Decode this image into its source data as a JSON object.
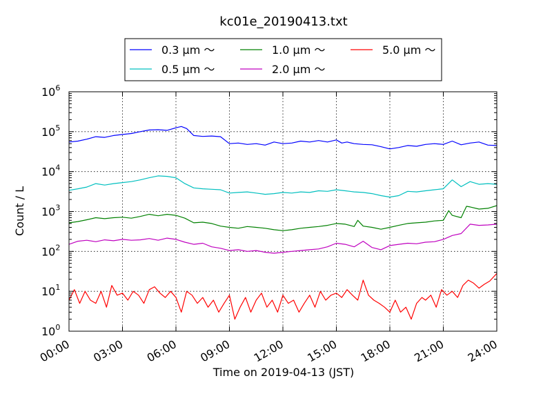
{
  "chart_data": {
    "type": "line",
    "title": "kc01e_20190413.txt",
    "xlabel": "Time on 2019-04-13 (JST)",
    "ylabel": "Count / L",
    "xlim": [
      0,
      24
    ],
    "x_unit": "hours",
    "ylim": [
      1,
      1000000
    ],
    "yscale": "log",
    "grid": true,
    "legend_position": "top",
    "x_ticks": [
      0,
      3,
      6,
      9,
      12,
      15,
      18,
      21,
      24
    ],
    "x_tick_labels": [
      "00:00",
      "03:00",
      "06:00",
      "09:00",
      "12:00",
      "15:00",
      "18:00",
      "21:00",
      "24:00"
    ],
    "y_ticks": [
      1,
      10,
      100,
      1000,
      10000,
      100000,
      1000000
    ],
    "y_tick_labels": [
      {
        "base": "10",
        "exp": "0"
      },
      {
        "base": "10",
        "exp": "1"
      },
      {
        "base": "10",
        "exp": "2"
      },
      {
        "base": "10",
        "exp": "3"
      },
      {
        "base": "10",
        "exp": "4"
      },
      {
        "base": "10",
        "exp": "5"
      },
      {
        "base": "10",
        "exp": "6"
      }
    ],
    "series": [
      {
        "name": "0.3 μm ～",
        "color": "#0000ff",
        "points": [
          [
            0,
            55000
          ],
          [
            0.5,
            58000
          ],
          [
            1,
            65000
          ],
          [
            1.5,
            75000
          ],
          [
            2,
            72000
          ],
          [
            2.5,
            80000
          ],
          [
            3,
            85000
          ],
          [
            3.5,
            90000
          ],
          [
            4,
            100000
          ],
          [
            4.5,
            110000
          ],
          [
            5,
            112000
          ],
          [
            5.5,
            108000
          ],
          [
            6,
            125000
          ],
          [
            6.3,
            135000
          ],
          [
            6.6,
            120000
          ],
          [
            7,
            80000
          ],
          [
            7.5,
            76000
          ],
          [
            8,
            78000
          ],
          [
            8.5,
            75000
          ],
          [
            9,
            50000
          ],
          [
            9.5,
            52000
          ],
          [
            10,
            48000
          ],
          [
            10.5,
            50000
          ],
          [
            11,
            46000
          ],
          [
            11.5,
            55000
          ],
          [
            12,
            50000
          ],
          [
            12.5,
            52000
          ],
          [
            13,
            58000
          ],
          [
            13.5,
            55000
          ],
          [
            14,
            60000
          ],
          [
            14.5,
            55000
          ],
          [
            15,
            62000
          ],
          [
            15.3,
            52000
          ],
          [
            15.6,
            55000
          ],
          [
            16,
            50000
          ],
          [
            16.5,
            48000
          ],
          [
            17,
            47000
          ],
          [
            17.5,
            42000
          ],
          [
            18,
            37000
          ],
          [
            18.5,
            40000
          ],
          [
            19,
            45000
          ],
          [
            19.5,
            43000
          ],
          [
            20,
            48000
          ],
          [
            20.5,
            50000
          ],
          [
            21,
            48000
          ],
          [
            21.5,
            58000
          ],
          [
            22,
            47000
          ],
          [
            22.5,
            52000
          ],
          [
            23,
            55000
          ],
          [
            23.5,
            46000
          ],
          [
            24,
            45000
          ]
        ]
      },
      {
        "name": "0.5 μm ～",
        "color": "#00bfbf",
        "points": [
          [
            0,
            3400
          ],
          [
            0.5,
            3700
          ],
          [
            1,
            4100
          ],
          [
            1.5,
            5000
          ],
          [
            2,
            4600
          ],
          [
            2.5,
            5000
          ],
          [
            3,
            5300
          ],
          [
            3.5,
            5600
          ],
          [
            4,
            6200
          ],
          [
            4.5,
            7000
          ],
          [
            5,
            7800
          ],
          [
            5.5,
            7600
          ],
          [
            6,
            7000
          ],
          [
            6.5,
            5000
          ],
          [
            7,
            3900
          ],
          [
            7.5,
            3700
          ],
          [
            8,
            3600
          ],
          [
            8.5,
            3500
          ],
          [
            9,
            2900
          ],
          [
            9.5,
            3000
          ],
          [
            10,
            3100
          ],
          [
            10.5,
            2900
          ],
          [
            11,
            2700
          ],
          [
            11.5,
            2800
          ],
          [
            12,
            3000
          ],
          [
            12.5,
            2900
          ],
          [
            13,
            3100
          ],
          [
            13.5,
            3000
          ],
          [
            14,
            3300
          ],
          [
            14.5,
            3200
          ],
          [
            15,
            3500
          ],
          [
            15.5,
            3300
          ],
          [
            16,
            3100
          ],
          [
            16.5,
            3000
          ],
          [
            17,
            2800
          ],
          [
            17.5,
            2500
          ],
          [
            18,
            2300
          ],
          [
            18.5,
            2500
          ],
          [
            19,
            3200
          ],
          [
            19.5,
            3100
          ],
          [
            20,
            3300
          ],
          [
            20.5,
            3500
          ],
          [
            21,
            3700
          ],
          [
            21.5,
            6200
          ],
          [
            22,
            4200
          ],
          [
            22.5,
            5600
          ],
          [
            23,
            4800
          ],
          [
            23.5,
            5000
          ],
          [
            24,
            4800
          ]
        ]
      },
      {
        "name": "1.0 μm ～",
        "color": "#008000",
        "points": [
          [
            0,
            520
          ],
          [
            0.5,
            560
          ],
          [
            1,
            620
          ],
          [
            1.5,
            700
          ],
          [
            2,
            660
          ],
          [
            2.5,
            700
          ],
          [
            3,
            720
          ],
          [
            3.5,
            680
          ],
          [
            4,
            750
          ],
          [
            4.5,
            850
          ],
          [
            5,
            780
          ],
          [
            5.5,
            850
          ],
          [
            6,
            800
          ],
          [
            6.5,
            680
          ],
          [
            7,
            520
          ],
          [
            7.5,
            540
          ],
          [
            8,
            500
          ],
          [
            8.5,
            430
          ],
          [
            9,
            400
          ],
          [
            9.5,
            380
          ],
          [
            10,
            420
          ],
          [
            10.5,
            400
          ],
          [
            11,
            380
          ],
          [
            11.5,
            350
          ],
          [
            12,
            330
          ],
          [
            12.5,
            350
          ],
          [
            13,
            380
          ],
          [
            13.5,
            400
          ],
          [
            14,
            420
          ],
          [
            14.5,
            450
          ],
          [
            15,
            500
          ],
          [
            15.5,
            480
          ],
          [
            16,
            420
          ],
          [
            16.2,
            600
          ],
          [
            16.5,
            430
          ],
          [
            17,
            400
          ],
          [
            17.5,
            360
          ],
          [
            18,
            400
          ],
          [
            18.5,
            450
          ],
          [
            19,
            500
          ],
          [
            19.5,
            520
          ],
          [
            20,
            540
          ],
          [
            20.5,
            580
          ],
          [
            21,
            600
          ],
          [
            21.3,
            1050
          ],
          [
            21.5,
            800
          ],
          [
            22,
            700
          ],
          [
            22.3,
            1350
          ],
          [
            22.5,
            1300
          ],
          [
            23,
            1150
          ],
          [
            23.5,
            1200
          ],
          [
            24,
            1400
          ]
        ]
      },
      {
        "name": "2.0 μm ～",
        "color": "#bf00bf",
        "points": [
          [
            0,
            150
          ],
          [
            0.5,
            180
          ],
          [
            1,
            190
          ],
          [
            1.5,
            175
          ],
          [
            2,
            195
          ],
          [
            2.5,
            185
          ],
          [
            3,
            200
          ],
          [
            3.5,
            190
          ],
          [
            4,
            195
          ],
          [
            4.5,
            210
          ],
          [
            5,
            190
          ],
          [
            5.5,
            215
          ],
          [
            6,
            200
          ],
          [
            6.5,
            170
          ],
          [
            7,
            150
          ],
          [
            7.5,
            160
          ],
          [
            8,
            130
          ],
          [
            8.5,
            120
          ],
          [
            9,
            105
          ],
          [
            9.5,
            110
          ],
          [
            10,
            100
          ],
          [
            10.5,
            105
          ],
          [
            11,
            95
          ],
          [
            11.5,
            90
          ],
          [
            12,
            95
          ],
          [
            12.5,
            100
          ],
          [
            13,
            105
          ],
          [
            13.5,
            110
          ],
          [
            14,
            115
          ],
          [
            14.5,
            130
          ],
          [
            15,
            160
          ],
          [
            15.5,
            150
          ],
          [
            16,
            130
          ],
          [
            16.5,
            180
          ],
          [
            17,
            125
          ],
          [
            17.5,
            110
          ],
          [
            18,
            140
          ],
          [
            18.5,
            150
          ],
          [
            19,
            160
          ],
          [
            19.5,
            155
          ],
          [
            20,
            170
          ],
          [
            20.5,
            175
          ],
          [
            21,
            200
          ],
          [
            21.5,
            250
          ],
          [
            22,
            280
          ],
          [
            22.5,
            480
          ],
          [
            23,
            450
          ],
          [
            23.5,
            460
          ],
          [
            24,
            480
          ]
        ]
      },
      {
        "name": "5.0 μm ～",
        "color": "#ff0000",
        "points": [
          [
            0,
            6
          ],
          [
            0.3,
            11
          ],
          [
            0.6,
            5
          ],
          [
            0.9,
            10
          ],
          [
            1.2,
            6
          ],
          [
            1.5,
            5
          ],
          [
            1.8,
            10
          ],
          [
            2.1,
            4
          ],
          [
            2.4,
            14
          ],
          [
            2.7,
            8
          ],
          [
            3,
            9
          ],
          [
            3.3,
            6
          ],
          [
            3.6,
            10
          ],
          [
            3.9,
            8
          ],
          [
            4.2,
            5
          ],
          [
            4.5,
            11
          ],
          [
            4.8,
            13
          ],
          [
            5.1,
            9
          ],
          [
            5.4,
            7
          ],
          [
            5.7,
            10
          ],
          [
            6,
            7
          ],
          [
            6.3,
            3
          ],
          [
            6.6,
            10
          ],
          [
            6.9,
            8
          ],
          [
            7.2,
            5
          ],
          [
            7.5,
            7
          ],
          [
            7.8,
            4
          ],
          [
            8.1,
            6
          ],
          [
            8.4,
            3
          ],
          [
            8.7,
            5
          ],
          [
            9,
            8
          ],
          [
            9.3,
            2
          ],
          [
            9.6,
            4
          ],
          [
            9.9,
            7
          ],
          [
            10.2,
            3
          ],
          [
            10.5,
            6
          ],
          [
            10.8,
            9
          ],
          [
            11.1,
            4
          ],
          [
            11.4,
            6
          ],
          [
            11.7,
            3
          ],
          [
            12,
            8
          ],
          [
            12.3,
            5
          ],
          [
            12.6,
            6
          ],
          [
            12.9,
            3
          ],
          [
            13.2,
            5
          ],
          [
            13.5,
            8
          ],
          [
            13.8,
            4
          ],
          [
            14.1,
            10
          ],
          [
            14.4,
            6
          ],
          [
            14.7,
            8
          ],
          [
            15,
            9
          ],
          [
            15.3,
            7
          ],
          [
            15.6,
            11
          ],
          [
            15.9,
            8
          ],
          [
            16.2,
            6
          ],
          [
            16.5,
            19
          ],
          [
            16.8,
            8
          ],
          [
            17.1,
            6
          ],
          [
            17.4,
            5
          ],
          [
            17.7,
            4
          ],
          [
            18,
            3
          ],
          [
            18.3,
            6
          ],
          [
            18.6,
            3
          ],
          [
            18.9,
            4
          ],
          [
            19.2,
            2
          ],
          [
            19.5,
            5
          ],
          [
            19.8,
            7
          ],
          [
            20,
            6
          ],
          [
            20.3,
            8
          ],
          [
            20.6,
            4
          ],
          [
            20.9,
            11
          ],
          [
            21.2,
            8
          ],
          [
            21.5,
            10
          ],
          [
            21.8,
            7
          ],
          [
            22.1,
            14
          ],
          [
            22.4,
            19
          ],
          [
            22.7,
            16
          ],
          [
            23,
            12
          ],
          [
            23.3,
            15
          ],
          [
            23.6,
            18
          ],
          [
            24,
            28
          ]
        ]
      }
    ]
  }
}
